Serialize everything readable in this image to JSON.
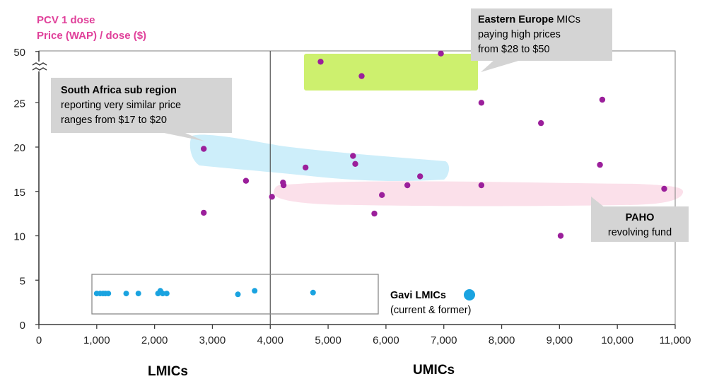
{
  "chart_data": {
    "type": "scatter",
    "ylabel_line1": "PCV 1 dose",
    "ylabel_line2": "Price (WAP) / dose ($)",
    "xlim": [
      0,
      11000
    ],
    "x_ticks": [
      "0",
      "1,000",
      "2,000",
      "3,000",
      "4,000",
      "5,000",
      "6,000",
      "7,000",
      "8,000",
      "9,000",
      "10,000",
      "11,000"
    ],
    "y_ticks": [
      "0",
      "5",
      "10",
      "15",
      "20",
      "25",
      "50"
    ],
    "y_axis_break": "between 25 and 50",
    "divider_x": 4000,
    "grid": false,
    "colors": {
      "country": "#9b1f9b",
      "gavi": "#1aa3e0",
      "axis_label": "#e0409a",
      "eastern_europe_band": "#cdf06e",
      "south_africa_band": "#cdeefa",
      "paho_band": "#fbe0ea",
      "callout_bg": "#d4d4d4"
    },
    "series": [
      {
        "points": [
          [
            2850,
            19.8
          ],
          [
            2850,
            12.6
          ],
          [
            3580,
            16.2
          ],
          [
            4030,
            14.4
          ],
          [
            4220,
            16.0
          ],
          [
            4230,
            15.7
          ],
          [
            4610,
            17.7
          ],
          [
            4870,
            45.0
          ],
          [
            5430,
            19.0
          ],
          [
            5470,
            18.1
          ],
          [
            5580,
            38.0
          ],
          [
            5800,
            12.5
          ],
          [
            5930,
            14.6
          ],
          [
            6370,
            15.7
          ],
          [
            6590,
            16.7
          ],
          [
            6950,
            49.0
          ],
          [
            7650,
            25.0
          ],
          [
            7650,
            15.7
          ],
          [
            8680,
            22.7
          ],
          [
            9020,
            10.0
          ],
          [
            9700,
            18.0
          ],
          [
            9740,
            26.5
          ],
          [
            10810,
            15.3
          ]
        ]
      },
      {
        "name": "Gavi LMICs",
        "points": [
          [
            1000,
            3.5
          ],
          [
            1060,
            3.5
          ],
          [
            1110,
            3.5
          ],
          [
            1150,
            3.5
          ],
          [
            1200,
            3.5
          ],
          [
            1510,
            3.5
          ],
          [
            1720,
            3.5
          ],
          [
            2060,
            3.5
          ],
          [
            2100,
            3.8
          ],
          [
            2140,
            3.5
          ],
          [
            2210,
            3.5
          ],
          [
            3440,
            3.4
          ],
          [
            3730,
            3.8
          ],
          [
            4740,
            3.6
          ]
        ]
      }
    ],
    "annotations": {
      "south_africa": {
        "bold": "South Africa sub region",
        "line2": "reporting very similar price",
        "line3": "ranges from $17 to $20"
      },
      "eastern_europe": {
        "bold": "Eastern Europe",
        "rest1": " MICs",
        "line2": "paying high prices",
        "line3": "from  $28 to $50"
      },
      "paho": {
        "bold": "PAHO",
        "line2": "revolving fund"
      },
      "gavi_legend": {
        "bold": "Gavi LMICs",
        "line2": "(current & former)"
      },
      "lmics": "LMICs",
      "umics": "UMICs"
    }
  }
}
